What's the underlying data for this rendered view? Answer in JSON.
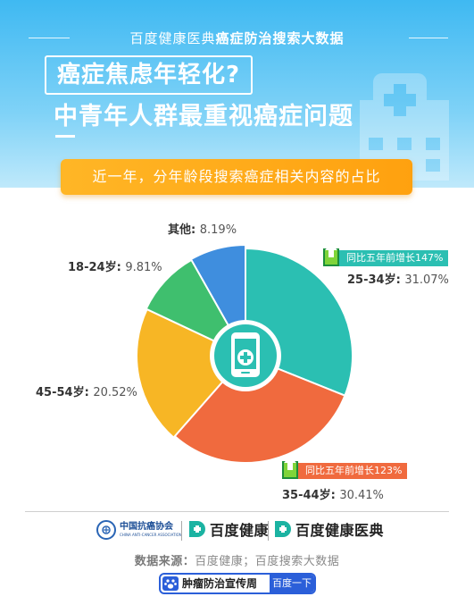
{
  "header": {
    "source_plain": "百度健康医典",
    "source_bold": "癌症防治搜索大数据",
    "title_line1": "癌症焦虑年轻化?",
    "title_line2": "中青年人群最重视癌症问题"
  },
  "banner": {
    "text": "近一年，分年龄段搜索癌症相关内容的占比"
  },
  "chart_data": {
    "type": "pie",
    "title": "近一年，分年龄段搜索癌症相关内容的占比",
    "unit": "%",
    "slices": [
      {
        "label": "25-34岁",
        "value": 31.07,
        "display": "31.07%",
        "color": "#2bbfb2"
      },
      {
        "label": "35-44岁",
        "value": 30.41,
        "display": "30.41%",
        "color": "#f06a3e"
      },
      {
        "label": "45-54岁",
        "value": 20.52,
        "display": "20.52%",
        "color": "#f7b625"
      },
      {
        "label": "18-24岁",
        "value": 9.81,
        "display": "9.81%",
        "color": "#3fbf6e"
      },
      {
        "label": "其他",
        "value": 8.19,
        "display": "8.19%",
        "color": "#3f8ede"
      }
    ],
    "annotations": [
      {
        "slice": "25-34岁",
        "text": "同比五年前增长147%",
        "color": "#2bbfb2"
      },
      {
        "slice": "35-44岁",
        "text": "同比五年前增长123%",
        "color": "#f06a3e"
      }
    ],
    "center_icon": "mobile-medical-icon"
  },
  "footer": {
    "assoc_name_cn": "中国抗癌协会",
    "assoc_name_en": "CHINA ANTI-CANCER ASSOCIATION",
    "logo1": "百度健康",
    "logo2": "百度健康医典",
    "source_label": "数据来源：",
    "source_text": "百度健康；百度搜索大数据",
    "pill_text": "肿瘤防治宣传周",
    "pill_button": "百度一下"
  },
  "colors": {
    "header_blue": "#3fb9f2",
    "banner_orange": "#ffa10f",
    "brand_blue": "#2b5fd9",
    "brand_green": "#1bb3a2"
  }
}
